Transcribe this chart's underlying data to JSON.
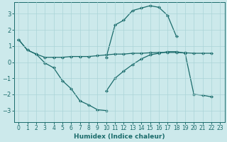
{
  "xlabel": "Humidex (Indice chaleur)",
  "bg_color": "#cce9eb",
  "grid_color": "#aad4d7",
  "line_color": "#1a6b6b",
  "xlim": [
    -0.5,
    23.5
  ],
  "ylim": [
    -3.7,
    3.7
  ],
  "yticks": [
    -3,
    -2,
    -1,
    0,
    1,
    2,
    3
  ],
  "xticks": [
    0,
    1,
    2,
    3,
    4,
    5,
    6,
    7,
    8,
    9,
    10,
    11,
    12,
    13,
    14,
    15,
    16,
    17,
    18,
    19,
    20,
    21,
    22,
    23
  ],
  "curve_flat_x": [
    0,
    1,
    2,
    3,
    4,
    5,
    6,
    7,
    8,
    9,
    10,
    11,
    12,
    13,
    14,
    15,
    16,
    17,
    18,
    19,
    20,
    21,
    22
  ],
  "curve_flat_y": [
    1.4,
    0.75,
    0.5,
    0.3,
    0.3,
    0.3,
    0.35,
    0.35,
    0.35,
    0.4,
    0.45,
    0.5,
    0.5,
    0.55,
    0.55,
    0.58,
    0.6,
    0.6,
    0.6,
    0.58,
    0.55,
    0.55,
    0.55
  ],
  "curve_down_x": [
    0,
    1,
    2,
    3,
    4,
    5,
    6,
    7,
    8,
    9,
    10
  ],
  "curve_down_y": [
    1.4,
    0.75,
    0.5,
    -0.05,
    -0.35,
    -1.15,
    -1.65,
    -2.4,
    -2.65,
    -2.95,
    -3.0
  ],
  "curve_up_x": [
    10,
    11,
    12,
    13,
    14,
    15,
    16,
    17,
    18
  ],
  "curve_up_y": [
    0.3,
    2.3,
    2.6,
    3.2,
    3.35,
    3.5,
    3.4,
    2.9,
    1.6
  ],
  "curve_right_x": [
    10,
    11,
    12,
    13,
    14,
    15,
    16,
    17,
    18,
    19,
    20,
    21,
    22
  ],
  "curve_right_y": [
    -1.8,
    -1.0,
    -0.55,
    -0.15,
    0.2,
    0.45,
    0.55,
    0.65,
    0.65,
    0.55,
    -2.0,
    -2.05,
    -2.15
  ]
}
